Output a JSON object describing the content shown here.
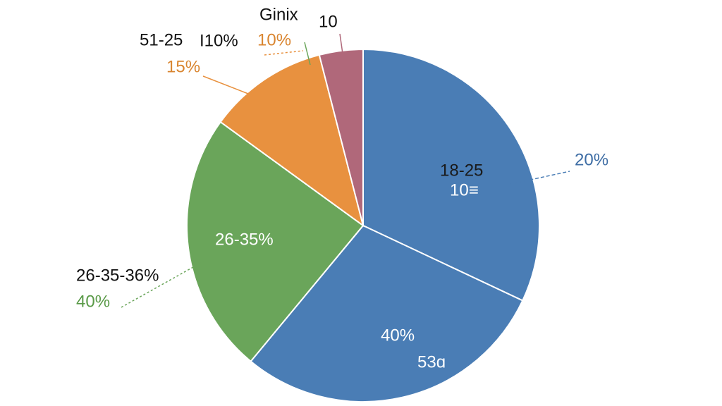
{
  "chart_data": {
    "type": "pie",
    "values": [
      32,
      29,
      24,
      11,
      4
    ],
    "colors": [
      "#4a7db5",
      "#4a7db5",
      "#6aa55a",
      "#e8913f",
      "#b0687a"
    ],
    "annotations": [
      "Ginix",
      "10",
      "51-25",
      "I10%",
      "10%",
      "15%",
      "18-25",
      "10≡",
      "20%",
      "26-35%",
      "26-35-36%",
      "40%",
      "40%",
      "53ɑ"
    ]
  }
}
